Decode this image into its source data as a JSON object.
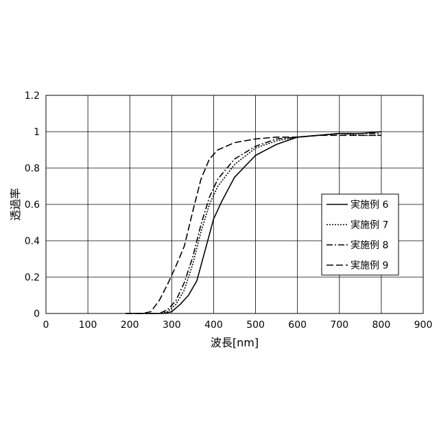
{
  "chart_data": {
    "type": "line",
    "title": "",
    "xlabel": "波長[nm]",
    "ylabel": "透過率",
    "xlim": [
      0,
      900
    ],
    "ylim": [
      0,
      1.2
    ],
    "xticks": [
      "0",
      "100",
      "200",
      "300",
      "400",
      "500",
      "600",
      "700",
      "800",
      "900"
    ],
    "yticks": [
      "0",
      "0.2",
      "0.4",
      "0.6",
      "0.8",
      "1",
      "1.2"
    ],
    "grid": true,
    "legend_position": "right",
    "series": [
      {
        "name": "実施例 6",
        "style": "solid",
        "x": [
          190,
          260,
          280,
          300,
          320,
          340,
          360,
          380,
          400,
          420,
          450,
          500,
          550,
          600,
          650,
          700,
          750,
          800
        ],
        "y": [
          0,
          0,
          0,
          0.01,
          0.05,
          0.1,
          0.18,
          0.35,
          0.52,
          0.62,
          0.75,
          0.87,
          0.93,
          0.97,
          0.98,
          0.99,
          0.99,
          1.0
        ]
      },
      {
        "name": "実施例 7",
        "style": "dotted",
        "x": [
          190,
          250,
          270,
          290,
          310,
          330,
          350,
          370,
          390,
          410,
          450,
          500,
          550,
          600,
          650,
          700,
          750,
          800
        ],
        "y": [
          0,
          0,
          0,
          0.01,
          0.05,
          0.13,
          0.27,
          0.45,
          0.6,
          0.7,
          0.82,
          0.91,
          0.95,
          0.97,
          0.98,
          0.99,
          0.98,
          0.98
        ]
      },
      {
        "name": "実施例 8",
        "style": "dashdot",
        "x": [
          190,
          250,
          270,
          290,
          310,
          330,
          350,
          370,
          390,
          410,
          450,
          500,
          550,
          600,
          650,
          700,
          750,
          800
        ],
        "y": [
          0,
          0,
          0,
          0.02,
          0.07,
          0.17,
          0.31,
          0.49,
          0.64,
          0.74,
          0.85,
          0.92,
          0.96,
          0.97,
          0.98,
          0.99,
          0.99,
          0.99
        ]
      },
      {
        "name": "実施例 9",
        "style": "dashed",
        "x": [
          190,
          230,
          250,
          270,
          290,
          310,
          330,
          350,
          370,
          390,
          410,
          450,
          500,
          550,
          600,
          650,
          700,
          750,
          800
        ],
        "y": [
          0,
          0,
          0.01,
          0.07,
          0.16,
          0.26,
          0.37,
          0.56,
          0.74,
          0.85,
          0.9,
          0.94,
          0.96,
          0.97,
          0.97,
          0.98,
          0.98,
          0.98,
          0.98
        ]
      }
    ]
  }
}
